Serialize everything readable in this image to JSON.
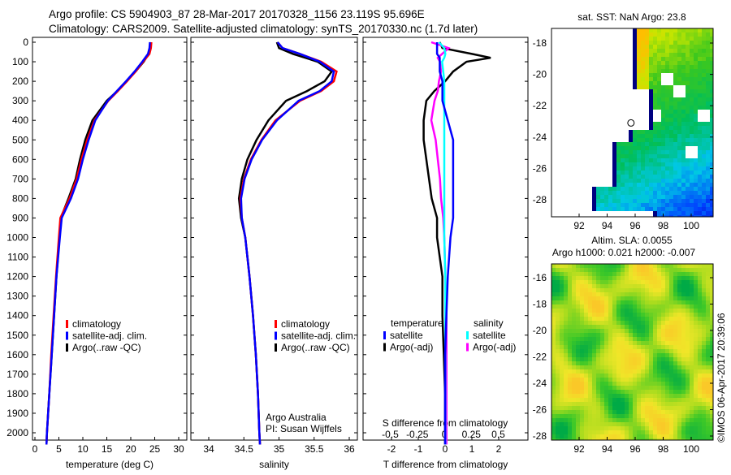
{
  "title": {
    "line1": "Argo profile: CS 5904903_87 28-Mar-2017 20170328_1156 23.119S 95.696E",
    "line2": "Climatology: CARS2009. Satellite-adjusted climatology: synTS_20170330.nc (1.7d later)"
  },
  "colors": {
    "climatology": "#ff0000",
    "satellite": "#0000ff",
    "argo": "#000000",
    "sal_satellite": "#00ffff",
    "sal_argo": "#ff00ff"
  },
  "chart_data": [
    {
      "type": "line",
      "title": "",
      "xlabel": "temperature (deg C)",
      "ylabel": "",
      "xlim": [
        -1,
        31
      ],
      "ylim": [
        2060,
        0
      ],
      "xticks": [
        "0",
        "5",
        "10",
        "15",
        "20",
        "25",
        "30"
      ],
      "yticks": [
        "0",
        "100",
        "200",
        "300",
        "400",
        "500",
        "600",
        "700",
        "800",
        "900",
        "1000",
        "1100",
        "1200",
        "1300",
        "1400",
        "1500",
        "1600",
        "1700",
        "1800",
        "1900",
        "2000"
      ],
      "depth": [
        0,
        30,
        60,
        100,
        150,
        200,
        250,
        300,
        400,
        500,
        600,
        700,
        800,
        900,
        1000,
        1200,
        1400,
        1600,
        1800,
        2000,
        2060
      ],
      "legend": [
        "climatology",
        "satellite-adj. clim.",
        "Argo(..raw -QC)"
      ],
      "series": [
        {
          "name": "climatology",
          "values": [
            24.3,
            24.2,
            23.9,
            22.6,
            21,
            19.2,
            17.3,
            15.3,
            12.4,
            10.9,
            9.7,
            8.7,
            7.2,
            5.3,
            5.0,
            4.4,
            3.9,
            3.4,
            3.0,
            2.5,
            2.4
          ]
        },
        {
          "name": "satellite-adj. clim.",
          "values": [
            24.0,
            23.9,
            23.6,
            22.4,
            20.8,
            19.0,
            17.1,
            15.2,
            12.6,
            11.2,
            10.0,
            9.0,
            7.5,
            5.6,
            5.2,
            4.5,
            4.0,
            3.5,
            3.0,
            2.5,
            2.4
          ]
        },
        {
          "name": "Argo(..raw -QC)",
          "values": [
            24.1,
            24.0,
            23.7,
            22.7,
            21,
            19.1,
            17.2,
            15.0,
            12.0,
            10.5,
            9.4,
            8.5,
            7.0,
            5.4,
            5.1,
            4.5,
            4.0,
            3.5,
            3.0,
            2.5,
            2.4
          ]
        }
      ]
    },
    {
      "type": "line",
      "xlabel": "salinity",
      "xlim": [
        33.7,
        36.2
      ],
      "xticks": [
        "34",
        "34.5",
        "35",
        "35.5",
        "36"
      ],
      "depth": [
        0,
        30,
        60,
        100,
        150,
        200,
        250,
        300,
        400,
        500,
        600,
        700,
        800,
        900,
        1000,
        1200,
        1400,
        1600,
        1800,
        2000,
        2060
      ],
      "legend": [
        "climatology",
        "satellite-adj. clim.",
        "Argo(..raw -QC)"
      ],
      "annotation": [
        "Argo Australia",
        "PI: Susan Wijffels"
      ],
      "series": [
        {
          "name": "climatology",
          "values": [
            34.98,
            35.05,
            35.3,
            35.6,
            35.82,
            35.78,
            35.6,
            35.3,
            34.95,
            34.75,
            34.6,
            34.5,
            34.45,
            34.47,
            34.52,
            34.58,
            34.63,
            34.67,
            34.7,
            34.72,
            34.73
          ]
        },
        {
          "name": "satellite-adj. clim.",
          "values": [
            34.98,
            35.05,
            35.3,
            35.58,
            35.78,
            35.75,
            35.58,
            35.28,
            34.97,
            34.76,
            34.61,
            34.51,
            34.46,
            34.47,
            34.52,
            34.58,
            34.63,
            34.67,
            34.7,
            34.72,
            34.73
          ]
        },
        {
          "name": "Argo(..raw -QC)",
          "values": [
            34.97,
            35.0,
            35.2,
            35.55,
            35.75,
            35.65,
            35.4,
            35.1,
            34.85,
            34.68,
            34.55,
            34.47,
            34.43,
            34.46,
            34.52,
            34.58,
            34.63,
            34.67,
            34.7,
            34.72,
            34.73
          ]
        }
      ]
    },
    {
      "type": "line",
      "xlabel": "T difference from climatology",
      "x2label": "S difference from climatology",
      "xlim": [
        -3,
        3.1
      ],
      "xticks": [
        "-2",
        "-1",
        "0",
        "1",
        "2"
      ],
      "x2ticks": [
        "-0.5",
        "-0.25",
        "0",
        "0.25",
        "0.5"
      ],
      "legend_temperature": {
        "title": "temperature",
        "items": [
          "satellite",
          "Argo(-adj)"
        ]
      },
      "legend_salinity": {
        "title": "salinity",
        "items": [
          "satellite",
          "Argo(-adj)"
        ]
      },
      "depth": [
        0,
        30,
        60,
        80,
        100,
        150,
        200,
        250,
        300,
        400,
        500,
        600,
        700,
        800,
        900,
        1000,
        1200,
        1400,
        1600,
        1800,
        2000,
        2060
      ],
      "series": [
        {
          "name": "T satellite",
          "values": [
            -0.3,
            -0.3,
            -0.3,
            -0.2,
            -0.2,
            -0.2,
            -0.1,
            -0.1,
            -0.1,
            0.1,
            0.3,
            0.3,
            0.3,
            0.3,
            0.3,
            0.2,
            0.1,
            0.05,
            0.0,
            0.0,
            0.0,
            0.0
          ]
        },
        {
          "name": "T Argo(-adj)",
          "values": [
            -0.2,
            -0.1,
            1.0,
            1.7,
            0.8,
            0.3,
            0.0,
            -0.4,
            -0.7,
            -0.8,
            -0.8,
            -0.7,
            -0.6,
            -0.5,
            -0.3,
            -0.3,
            -0.1,
            -0.1,
            -0.05,
            0.0,
            0.0,
            0.0
          ]
        },
        {
          "name": "S satellite",
          "values": [
            -0.05,
            0.0,
            0.01,
            0.0,
            -0.02,
            -0.01,
            0.0,
            0.0,
            0.0,
            0.0,
            0.0,
            0.0,
            0.0,
            0.0,
            0.0,
            0.0,
            0.01,
            0.01,
            0.01,
            0.01,
            0.01,
            0.01
          ]
        },
        {
          "name": "S Argo(-adj)",
          "values": [
            -0.12,
            0.04,
            -0.02,
            -0.06,
            -0.04,
            -0.03,
            -0.05,
            -0.06,
            -0.09,
            -0.12,
            -0.08,
            -0.06,
            -0.04,
            -0.03,
            -0.01,
            0.0,
            0.01,
            0.02,
            0.02,
            0.02,
            0.02,
            0.02
          ]
        }
      ]
    },
    {
      "type": "heatmap",
      "title": "sat. SST: NaN Argo: 23.8",
      "xticks": [
        "92",
        "94",
        "96",
        "98",
        "100"
      ],
      "yticks": [
        "-18",
        "-20",
        "-22",
        "-24",
        "-26",
        "-28"
      ],
      "xlim": [
        90,
        101.5
      ],
      "ylim": [
        -29.1,
        -17.1
      ],
      "marker": {
        "lon": 95.7,
        "lat": -23.1
      }
    },
    {
      "type": "heatmap",
      "title": "Altim. SLA: 0.0055",
      "subtitle": "Argo h1000: 0.021 h2000: -0.007",
      "xticks": [
        "92",
        "94",
        "96",
        "98",
        "100"
      ],
      "yticks": [
        "-16",
        "-18",
        "-20",
        "-22",
        "-24",
        "-26",
        "-28"
      ],
      "xlim": [
        90,
        101.5
      ],
      "ylim": [
        -29.3,
        -15
      ]
    }
  ],
  "credit": "©IMOS 06-Apr-2017 20:39:06"
}
